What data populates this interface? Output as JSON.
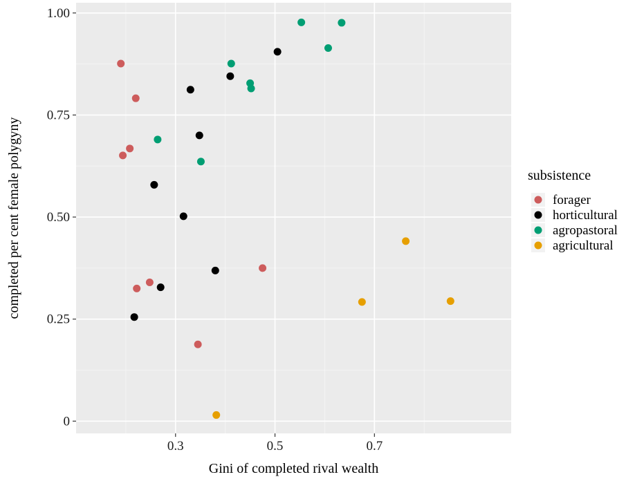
{
  "chart_data": {
    "type": "scatter",
    "xlabel": "Gini of completed rival wealth",
    "ylabel": "completed per cent female polygyny",
    "xlim": [
      0.1,
      0.975
    ],
    "ylim": [
      -0.03,
      1.025
    ],
    "x_ticks": [
      0.3,
      0.5,
      0.7
    ],
    "x_tick_labels": [
      "0.3",
      "0.5",
      "0.7"
    ],
    "y_ticks": [
      0,
      0.25,
      0.5,
      0.75,
      1.0
    ],
    "y_tick_labels": [
      "0",
      "0.25",
      "0.50",
      "0.75",
      "1.00"
    ],
    "x_minor": [
      0.2,
      0.4,
      0.6,
      0.8
    ],
    "y_minor": [
      0.125,
      0.375,
      0.625,
      0.875
    ],
    "grid": true,
    "panel_background": "#EBEBEB",
    "legend": {
      "title": "subsistence",
      "position": "right"
    },
    "series": [
      {
        "name": "forager",
        "color": "#CD5C5C",
        "points": [
          [
            0.19,
            0.876
          ],
          [
            0.22,
            0.791
          ],
          [
            0.208,
            0.668
          ],
          [
            0.194,
            0.651
          ],
          [
            0.222,
            0.325
          ],
          [
            0.248,
            0.34
          ],
          [
            0.475,
            0.375
          ],
          [
            0.345,
            0.188
          ]
        ]
      },
      {
        "name": "horticultural",
        "color": "#000000",
        "points": [
          [
            0.505,
            0.905
          ],
          [
            0.41,
            0.845
          ],
          [
            0.33,
            0.812
          ],
          [
            0.348,
            0.7
          ],
          [
            0.257,
            0.579
          ],
          [
            0.316,
            0.502
          ],
          [
            0.38,
            0.369
          ],
          [
            0.27,
            0.328
          ],
          [
            0.217,
            0.255
          ]
        ]
      },
      {
        "name": "agropastoral",
        "color": "#009E73",
        "points": [
          [
            0.553,
            0.977
          ],
          [
            0.634,
            0.976
          ],
          [
            0.607,
            0.914
          ],
          [
            0.412,
            0.876
          ],
          [
            0.45,
            0.828
          ],
          [
            0.452,
            0.815
          ],
          [
            0.264,
            0.69
          ],
          [
            0.351,
            0.636
          ]
        ]
      },
      {
        "name": "agricultural",
        "color": "#E69F00",
        "points": [
          [
            0.763,
            0.441
          ],
          [
            0.675,
            0.292
          ],
          [
            0.853,
            0.294
          ],
          [
            0.382,
            0.015
          ]
        ]
      }
    ]
  }
}
